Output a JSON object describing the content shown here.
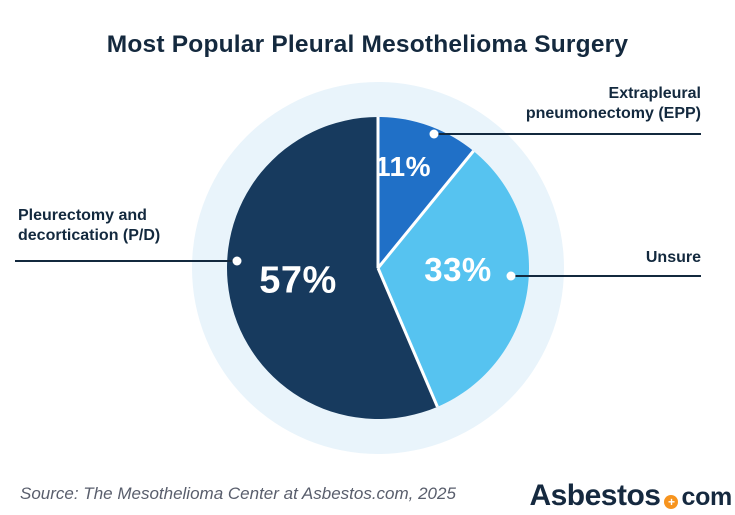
{
  "title": "Most Popular Pleural Mesothelioma Surgery",
  "chart_data": {
    "type": "pie",
    "title": "Most Popular Pleural Mesothelioma Surgery",
    "unit": "%",
    "slices": [
      {
        "label": "Extrapleural pneumonectomy (EPP)",
        "value": 11,
        "display": "11%",
        "color": "#2070C7"
      },
      {
        "label": "Unsure",
        "value": 33,
        "display": "33%",
        "color": "#56C3F0"
      },
      {
        "label": "Pleurectomy and decortication (P/D)",
        "value": 57,
        "display": "57%",
        "color": "#173A5E"
      }
    ],
    "start_angle_deg": -90,
    "direction": "clockwise",
    "halo_color": "#E9F4FB",
    "separator_color": "#FFFFFF",
    "value_label_color": "#FFFFFF",
    "legend_position": "callouts"
  },
  "callouts": {
    "epp": {
      "lines": [
        "Extrapleural",
        "pneumonectomy (EPP)"
      ]
    },
    "unsure": {
      "lines": [
        "Unsure"
      ]
    },
    "pd": {
      "lines": [
        "Pleurectomy and",
        "decortication (P/D)"
      ]
    }
  },
  "footer": {
    "source": "Source: The Mesothelioma Center at Asbestos.com, 2025",
    "logo": {
      "text": "Asbestos",
      "suffix": "com",
      "plus": "+",
      "dot_color": "#F7941E",
      "text_color": "#15293F"
    }
  },
  "colors": {
    "title_text": "#14293E",
    "callout_text": "#13293E",
    "leader_line": "#13293E",
    "source_text": "#595E6C",
    "background": "#FFFFFF"
  }
}
